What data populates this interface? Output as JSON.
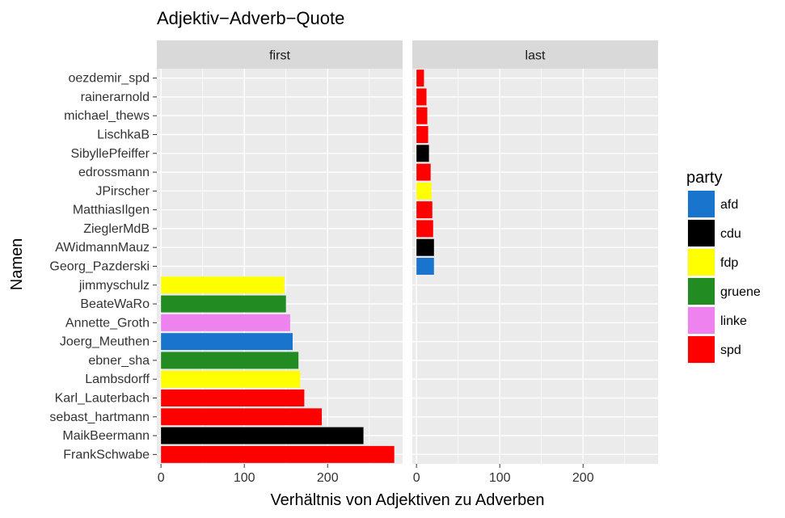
{
  "chart_data": {
    "type": "bar",
    "orientation": "horizontal",
    "title": "Adjektiv−Adverb−Quote",
    "xlabel": "Verhältnis von Adjektiven zu Adverben",
    "ylabel": "Namen",
    "xlim": [
      -5,
      290
    ],
    "xticks": [
      0,
      100,
      200
    ],
    "xtick_labels": [
      "0",
      "100",
      "200"
    ],
    "grid": true,
    "legend": {
      "title": "party",
      "position": "right",
      "entries": [
        {
          "label": "afd",
          "color": "#1874CD"
        },
        {
          "label": "cdu",
          "color": "#000000"
        },
        {
          "label": "fdp",
          "color": "#FFFF00"
        },
        {
          "label": "gruene",
          "color": "#228B22"
        },
        {
          "label": "linke",
          "color": "#EE82EE"
        },
        {
          "label": "spd",
          "color": "#FF0000"
        }
      ]
    },
    "categories": [
      "oezdemir_spd",
      "rainerarnold",
      "michael_thews",
      "LischkaB",
      "SibyllePfeiffer",
      "edrossmann",
      "JPirscher",
      "MatthiasIlgen",
      "ZieglerMdB",
      "AWidmannMauz",
      "Georg_Pazderski",
      "jimmyschulz",
      "BeateWaRo",
      "Annette_Groth",
      "Joerg_Meuthen",
      "ebner_sha",
      "Lambsdorff",
      "Karl_Lauterbach",
      "sebast_hartmann",
      "MaikBeermann",
      "FrankSchwabe"
    ],
    "panels": [
      {
        "label": "first",
        "bars": [
          {
            "name": "jimmyschulz",
            "party": "fdp",
            "value": 148
          },
          {
            "name": "BeateWaRo",
            "party": "gruene",
            "value": 150
          },
          {
            "name": "Annette_Groth",
            "party": "linke",
            "value": 155
          },
          {
            "name": "Joerg_Meuthen",
            "party": "afd",
            "value": 158
          },
          {
            "name": "ebner_sha",
            "party": "gruene",
            "value": 165
          },
          {
            "name": "Lambsdorff",
            "party": "fdp",
            "value": 167
          },
          {
            "name": "Karl_Lauterbach",
            "party": "spd",
            "value": 172
          },
          {
            "name": "sebast_hartmann",
            "party": "spd",
            "value": 193
          },
          {
            "name": "MaikBeermann",
            "party": "cdu",
            "value": 243
          },
          {
            "name": "FrankSchwabe",
            "party": "spd",
            "value": 280
          }
        ]
      },
      {
        "label": "last",
        "bars": [
          {
            "name": "oezdemir_spd",
            "party": "spd",
            "value": 9
          },
          {
            "name": "rainerarnold",
            "party": "spd",
            "value": 12
          },
          {
            "name": "michael_thews",
            "party": "spd",
            "value": 13
          },
          {
            "name": "LischkaB",
            "party": "spd",
            "value": 14
          },
          {
            "name": "SibyllePfeiffer",
            "party": "cdu",
            "value": 15
          },
          {
            "name": "edrossmann",
            "party": "spd",
            "value": 17
          },
          {
            "name": "JPirscher",
            "party": "fdp",
            "value": 18
          },
          {
            "name": "MatthiasIlgen",
            "party": "spd",
            "value": 19
          },
          {
            "name": "ZieglerMdB",
            "party": "spd",
            "value": 20
          },
          {
            "name": "AWidmannMauz",
            "party": "cdu",
            "value": 21
          },
          {
            "name": "Georg_Pazderski",
            "party": "afd",
            "value": 21
          }
        ]
      }
    ]
  }
}
